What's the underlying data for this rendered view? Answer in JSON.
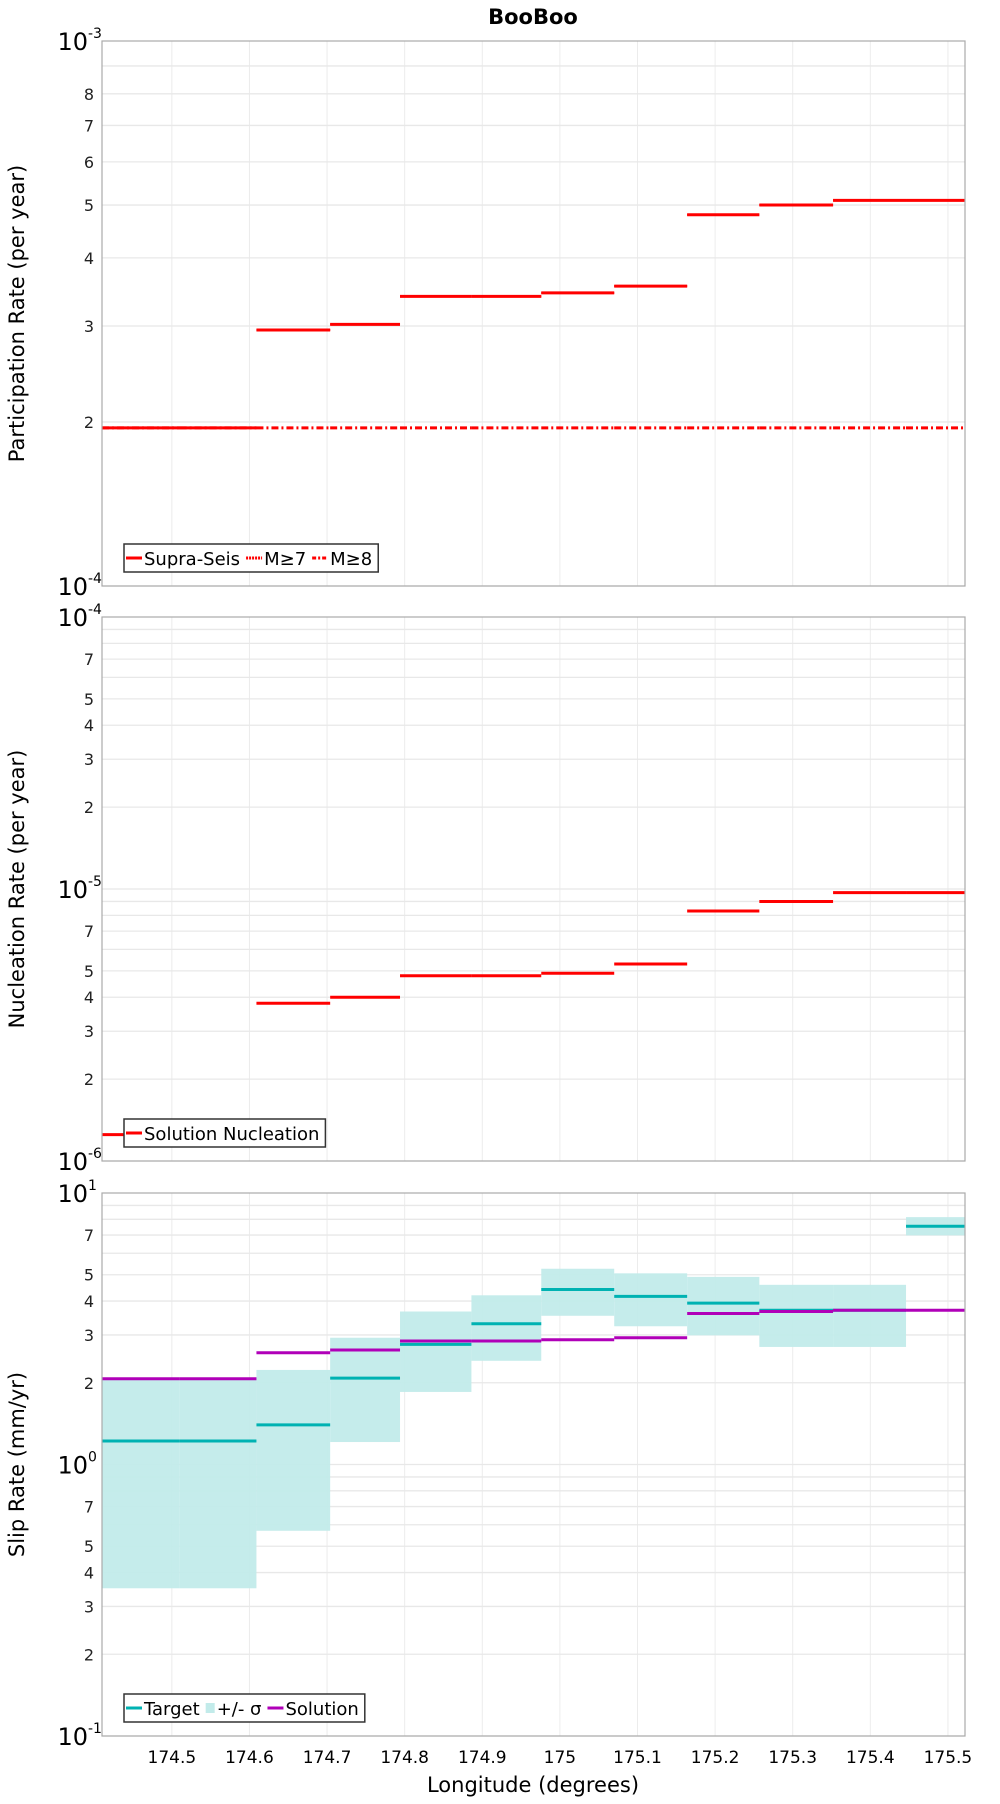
{
  "chart_data": [
    {
      "type": "line",
      "title": "BooBoo",
      "ylabel": "Participation Rate (per year)",
      "yscale": "log",
      "ylim": [
        0.0001,
        0.001
      ],
      "ytick_labels": {
        "major": [
          {
            "base": "10",
            "exp": "-3"
          },
          {
            "base": "10",
            "exp": "-4"
          }
        ],
        "minor": [
          "2",
          "3",
          "4",
          "5",
          "6",
          "7",
          "8"
        ]
      },
      "legend": {
        "position": "bottom-left",
        "entries": [
          "Supra-Seis",
          "M≥7",
          "M≥8"
        ]
      },
      "series": [
        {
          "name": "Supra-Seis",
          "color": "#ff0000",
          "style": "solid",
          "values": [
            0.000195,
            0.000195,
            0.000295,
            0.000302,
            0.00034,
            0.00034,
            0.000345,
            0.000355,
            0.00048,
            0.0005,
            0.00051,
            0.00051
          ]
        },
        {
          "name": "M≥7",
          "color": "#ff0000",
          "style": "dotted",
          "values": [
            0.000195,
            0.000195,
            0.000295,
            0.000302,
            0.00034,
            0.00034,
            0.000345,
            0.000355,
            0.00048,
            0.0005,
            0.00051,
            0.00051
          ]
        },
        {
          "name": "M≥8",
          "color": "#ff0000",
          "style": "dashdot",
          "values": [
            0.000195,
            0.000195,
            0.000195,
            0.000195,
            0.000195,
            0.000195,
            0.000195,
            0.000195,
            0.000195,
            0.000195,
            0.000195,
            0.000195
          ]
        }
      ]
    },
    {
      "type": "line",
      "ylabel": "Nucleation Rate (per year)",
      "yscale": "log",
      "ylim": [
        1e-06,
        0.0001
      ],
      "ytick_labels": {
        "major": [
          {
            "base": "10",
            "exp": "-4"
          },
          {
            "base": "10",
            "exp": "-5"
          },
          {
            "base": "10",
            "exp": "-6"
          }
        ],
        "minor": [
          "2",
          "3",
          "4",
          "5",
          "7"
        ]
      },
      "legend": {
        "position": "bottom-left",
        "entries": [
          "Solution Nucleation"
        ]
      },
      "series": [
        {
          "name": "Solution Nucleation",
          "color": "#ff0000",
          "style": "solid",
          "values": [
            1.25e-06,
            1.25e-06,
            3.8e-06,
            4e-06,
            4.8e-06,
            4.8e-06,
            4.9e-06,
            5.3e-06,
            8.3e-06,
            9e-06,
            9.7e-06,
            9.7e-06
          ]
        }
      ]
    },
    {
      "type": "line",
      "ylabel": "Slip Rate (mm/yr)",
      "xlabel": "Longitude (degrees)",
      "yscale": "log",
      "ylim": [
        0.1,
        10
      ],
      "ytick_labels": {
        "major": [
          {
            "base": "10",
            "exp": "1"
          },
          {
            "base": "10",
            "exp": "0"
          },
          {
            "base": "10",
            "exp": "-1"
          }
        ],
        "minor": [
          "2",
          "3",
          "4",
          "5",
          "7"
        ]
      },
      "legend": {
        "position": "bottom-left",
        "entries": [
          "Target",
          "+/- σ",
          "Solution"
        ]
      },
      "series": [
        {
          "name": "Target",
          "color": "#00b2b2",
          "style": "solid",
          "values": [
            1.22,
            1.22,
            1.4,
            2.08,
            2.77,
            3.3,
            4.41,
            4.16,
            3.93,
            3.7,
            3.7,
            7.54
          ]
        },
        {
          "name": "+/- σ",
          "color": "#c2ebea",
          "style": "band",
          "lower": [
            0.35,
            0.35,
            0.57,
            1.21,
            1.85,
            2.41,
            3.53,
            3.23,
            2.99,
            2.71,
            2.71,
            6.98
          ],
          "upper": [
            2.08,
            2.08,
            2.23,
            2.93,
            3.66,
            4.2,
            5.26,
            5.06,
            4.91,
            4.59,
            4.59,
            8.15
          ]
        },
        {
          "name": "Solution",
          "color": "#b000b8",
          "style": "solid",
          "values": [
            2.07,
            2.07,
            2.58,
            2.64,
            2.85,
            2.85,
            2.88,
            2.93,
            3.6,
            3.66,
            3.7,
            3.7
          ]
        }
      ]
    }
  ],
  "x": {
    "bin_edges": [
      174.41,
      174.51,
      174.609,
      174.704,
      174.794,
      174.886,
      174.976,
      175.07,
      175.164,
      175.257,
      175.352,
      175.446,
      175.522
    ],
    "xlim": [
      174.41,
      175.522
    ],
    "tick_labels": [
      "174.5",
      "174.6",
      "174.7",
      "174.8",
      "174.9",
      "175",
      "175.1",
      "175.2",
      "175.3",
      "175.4",
      "175.5"
    ],
    "tick_values": [
      174.5,
      174.6,
      174.7,
      174.8,
      174.9,
      175,
      175.1,
      175.2,
      175.3,
      175.4,
      175.5
    ]
  }
}
